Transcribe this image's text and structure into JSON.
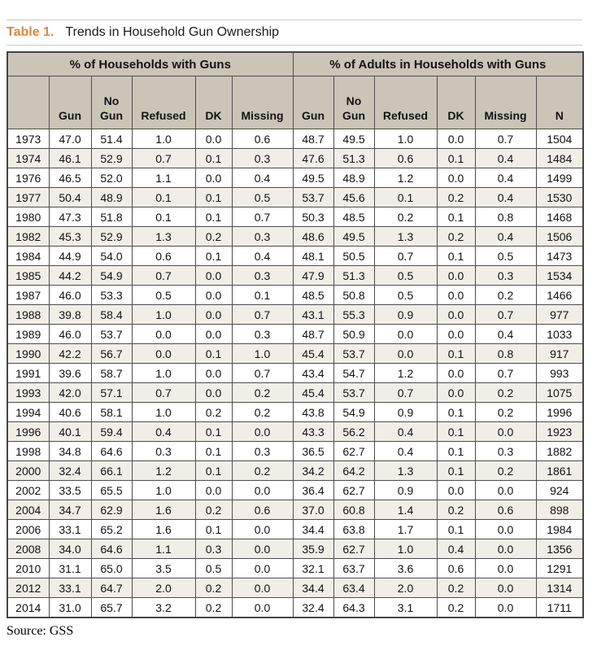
{
  "page": {
    "title_label": "Table 1.",
    "title_text": "Trends in Household Gun Ownership",
    "source": "Source: GSS"
  },
  "colors": {
    "title_label_orange": "#e0863f",
    "header_background": "#cbc5b8",
    "stripe_background": "#f1eee8",
    "grid_border": "#4d4d4d",
    "rule_gray": "#c9c8c3"
  },
  "table": {
    "group_headers": [
      {
        "label": "% of Households with Guns",
        "colspan": 6
      },
      {
        "label": "% of Adults in Households with Guns",
        "colspan": 6
      }
    ],
    "columns": [
      "",
      "Gun",
      "No\nGun",
      "Refused",
      "DK",
      "Missing",
      "Gun",
      "No\nGun",
      "Refused",
      "DK",
      "Missing",
      "N"
    ],
    "rows": [
      [
        "1973",
        "47.0",
        "51.4",
        "1.0",
        "0.0",
        "0.6",
        "48.7",
        "49.5",
        "1.0",
        "0.0",
        "0.7",
        "1504"
      ],
      [
        "1974",
        "46.1",
        "52.9",
        "0.7",
        "0.1",
        "0.3",
        "47.6",
        "51.3",
        "0.6",
        "0.1",
        "0.4",
        "1484"
      ],
      [
        "1976",
        "46.5",
        "52.0",
        "1.1",
        "0.0",
        "0.4",
        "49.5",
        "48.9",
        "1.2",
        "0.0",
        "0.4",
        "1499"
      ],
      [
        "1977",
        "50.4",
        "48.9",
        "0.1",
        "0.1",
        "0.5",
        "53.7",
        "45.6",
        "0.1",
        "0.2",
        "0.4",
        "1530"
      ],
      [
        "1980",
        "47.3",
        "51.8",
        "0.1",
        "0.1",
        "0.7",
        "50.3",
        "48.5",
        "0.2",
        "0.1",
        "0.8",
        "1468"
      ],
      [
        "1982",
        "45.3",
        "52.9",
        "1.3",
        "0.2",
        "0.3",
        "48.6",
        "49.5",
        "1.3",
        "0.2",
        "0.4",
        "1506"
      ],
      [
        "1984",
        "44.9",
        "54.0",
        "0.6",
        "0.1",
        "0.4",
        "48.1",
        "50.5",
        "0.7",
        "0.1",
        "0.5",
        "1473"
      ],
      [
        "1985",
        "44.2",
        "54.9",
        "0.7",
        "0.0",
        "0.3",
        "47.9",
        "51.3",
        "0.5",
        "0.0",
        "0.3",
        "1534"
      ],
      [
        "1987",
        "46.0",
        "53.3",
        "0.5",
        "0.0",
        "0.1",
        "48.5",
        "50.8",
        "0.5",
        "0.0",
        "0.2",
        "1466"
      ],
      [
        "1988",
        "39.8",
        "58.4",
        "1.0",
        "0.0",
        "0.7",
        "43.1",
        "55.3",
        "0.9",
        "0.0",
        "0.7",
        "977"
      ],
      [
        "1989",
        "46.0",
        "53.7",
        "0.0",
        "0.0",
        "0.3",
        "48.7",
        "50.9",
        "0.0",
        "0.0",
        "0.4",
        "1033"
      ],
      [
        "1990",
        "42.2",
        "56.7",
        "0.0",
        "0.1",
        "1.0",
        "45.4",
        "53.7",
        "0.0",
        "0.1",
        "0.8",
        "917"
      ],
      [
        "1991",
        "39.6",
        "58.7",
        "1.0",
        "0.0",
        "0.7",
        "43.4",
        "54.7",
        "1.2",
        "0.0",
        "0.7",
        "993"
      ],
      [
        "1993",
        "42.0",
        "57.1",
        "0.7",
        "0.0",
        "0.2",
        "45.4",
        "53.7",
        "0.7",
        "0.0",
        "0.2",
        "1075"
      ],
      [
        "1994",
        "40.6",
        "58.1",
        "1.0",
        "0.2",
        "0.2",
        "43.8",
        "54.9",
        "0.9",
        "0.1",
        "0.2",
        "1996"
      ],
      [
        "1996",
        "40.1",
        "59.4",
        "0.4",
        "0.1",
        "0.0",
        "43.3",
        "56.2",
        "0.4",
        "0.1",
        "0.0",
        "1923"
      ],
      [
        "1998",
        "34.8",
        "64.6",
        "0.3",
        "0.1",
        "0.3",
        "36.5",
        "62.7",
        "0.4",
        "0.1",
        "0.3",
        "1882"
      ],
      [
        "2000",
        "32.4",
        "66.1",
        "1.2",
        "0.1",
        "0.2",
        "34.2",
        "64.2",
        "1.3",
        "0.1",
        "0.2",
        "1861"
      ],
      [
        "2002",
        "33.5",
        "65.5",
        "1.0",
        "0.0",
        "0.0",
        "36.4",
        "62.7",
        "0.9",
        "0.0",
        "0.0",
        "924"
      ],
      [
        "2004",
        "34.7",
        "62.9",
        "1.6",
        "0.2",
        "0.6",
        "37.0",
        "60.8",
        "1.4",
        "0.2",
        "0.6",
        "898"
      ],
      [
        "2006",
        "33.1",
        "65.2",
        "1.6",
        "0.1",
        "0.0",
        "34.4",
        "63.8",
        "1.7",
        "0.1",
        "0.0",
        "1984"
      ],
      [
        "2008",
        "34.0",
        "64.6",
        "1.1",
        "0.3",
        "0.0",
        "35.9",
        "62.7",
        "1.0",
        "0.4",
        "0.0",
        "1356"
      ],
      [
        "2010",
        "31.1",
        "65.0",
        "3.5",
        "0.5",
        "0.0",
        "32.1",
        "63.7",
        "3.6",
        "0.6",
        "0.0",
        "1291"
      ],
      [
        "2012",
        "33.1",
        "64.7",
        "2.0",
        "0.2",
        "0.0",
        "34.4",
        "63.4",
        "2.0",
        "0.2",
        "0.0",
        "1314"
      ],
      [
        "2014",
        "31.0",
        "65.7",
        "3.2",
        "0.2",
        "0.0",
        "32.4",
        "64.3",
        "3.1",
        "0.2",
        "0.0",
        "1711"
      ]
    ]
  }
}
